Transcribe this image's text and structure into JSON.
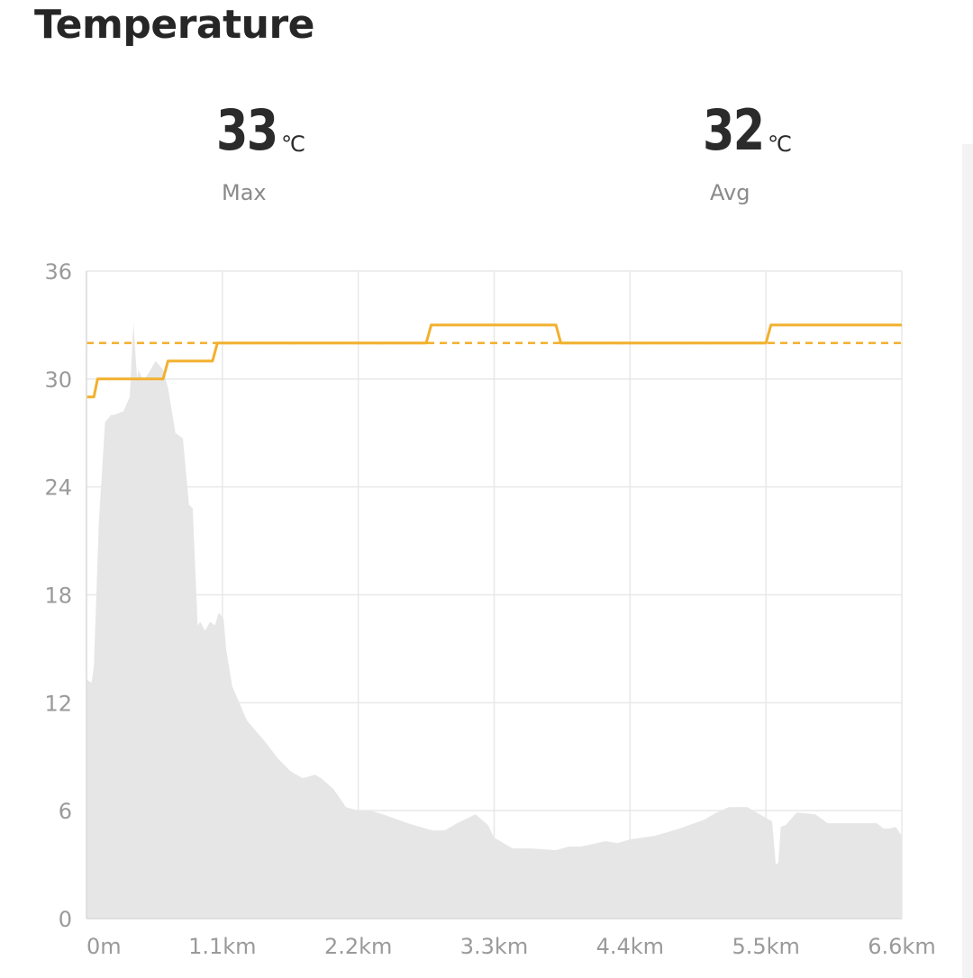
{
  "header": {
    "title": "Temperature"
  },
  "stats": {
    "max": {
      "value": "33",
      "unit": "℃",
      "label": "Max"
    },
    "avg": {
      "value": "32",
      "unit": "℃",
      "label": "Avg"
    }
  },
  "colors": {
    "temperature_line": "#F2B02E",
    "average_line": "#F2B02E",
    "area_fill": "#E6E6E6",
    "grid": "#E8E8E8",
    "tick_text": "#9A9A9A"
  },
  "chart_data": {
    "type": "line",
    "title": "",
    "xlabel": "",
    "ylabel": "",
    "xlim": [
      0,
      6.6
    ],
    "ylim": [
      0,
      36
    ],
    "x_unit": "km",
    "y_ticks": [
      0,
      6,
      12,
      18,
      24,
      30,
      36
    ],
    "y_tick_labels": [
      "0",
      "6",
      "12",
      "18",
      "24",
      "30",
      "36"
    ],
    "x_ticks": [
      0,
      1.1,
      2.2,
      3.3,
      4.4,
      5.5,
      6.6
    ],
    "x_tick_labels": [
      "0m",
      "1.1km",
      "2.2km",
      "3.3km",
      "4.4km",
      "5.5km",
      "6.6km"
    ],
    "grid": true,
    "series": [
      {
        "kind": "line",
        "x": [
          0,
          0.06,
          0.09,
          0.62,
          0.66,
          1.02,
          1.06,
          2.75,
          2.79,
          3.8,
          3.84,
          5.5,
          5.54,
          6.6
        ],
        "y": [
          29,
          29,
          30,
          30,
          31,
          31,
          32,
          32,
          33,
          33,
          32,
          32,
          33,
          33
        ]
      },
      {
        "kind": "reference-line",
        "style": "dashed",
        "y": 32
      },
      {
        "kind": "area",
        "x": [
          0,
          0.04,
          0.06,
          0.1,
          0.15,
          0.2,
          0.22,
          0.3,
          0.35,
          0.38,
          0.41,
          0.42,
          0.46,
          0.5,
          0.56,
          0.62,
          0.66,
          0.72,
          0.78,
          0.83,
          0.86,
          0.9,
          0.92,
          0.96,
          1.0,
          1.04,
          1.07,
          1.11,
          1.13,
          1.18,
          1.25,
          1.28,
          1.3,
          1.35,
          1.45,
          1.55,
          1.65,
          1.75,
          1.85,
          1.9,
          2.0,
          2.1,
          2.2,
          2.3,
          2.4,
          2.6,
          2.8,
          2.9,
          3.0,
          3.15,
          3.25,
          3.3,
          3.35,
          3.45,
          3.6,
          3.8,
          3.9,
          4.0,
          4.2,
          4.3,
          4.4,
          4.6,
          4.8,
          5.0,
          5.1,
          5.2,
          5.35,
          5.5,
          5.55,
          5.58,
          5.6,
          5.62,
          5.66,
          5.75,
          5.9,
          6.0,
          6.1,
          6.3,
          6.4,
          6.45,
          6.5,
          6.55,
          6.6
        ],
        "y": [
          13.3,
          13.1,
          14.0,
          22.0,
          27.6,
          28.0,
          28.0,
          28.2,
          29.0,
          33.1,
          30.0,
          30.5,
          29.9,
          30.3,
          31.0,
          30.5,
          29.5,
          27.0,
          26.7,
          23.0,
          22.8,
          16.3,
          16.5,
          16.0,
          16.5,
          16.3,
          17.0,
          16.7,
          15.0,
          12.9,
          11.8,
          11.3,
          11.0,
          10.6,
          9.8,
          8.9,
          8.2,
          7.8,
          8.0,
          7.8,
          7.2,
          6.2,
          6.0,
          6.0,
          5.8,
          5.3,
          4.9,
          4.9,
          5.3,
          5.8,
          5.2,
          4.5,
          4.3,
          3.9,
          3.9,
          3.8,
          4.0,
          4.0,
          4.3,
          4.2,
          4.4,
          4.6,
          5.0,
          5.5,
          5.9,
          6.2,
          6.2,
          5.6,
          5.4,
          3.0,
          3.1,
          5.1,
          5.2,
          5.9,
          5.8,
          5.3,
          5.3,
          5.3,
          5.3,
          5.0,
          5.0,
          5.1,
          4.6
        ]
      }
    ]
  }
}
